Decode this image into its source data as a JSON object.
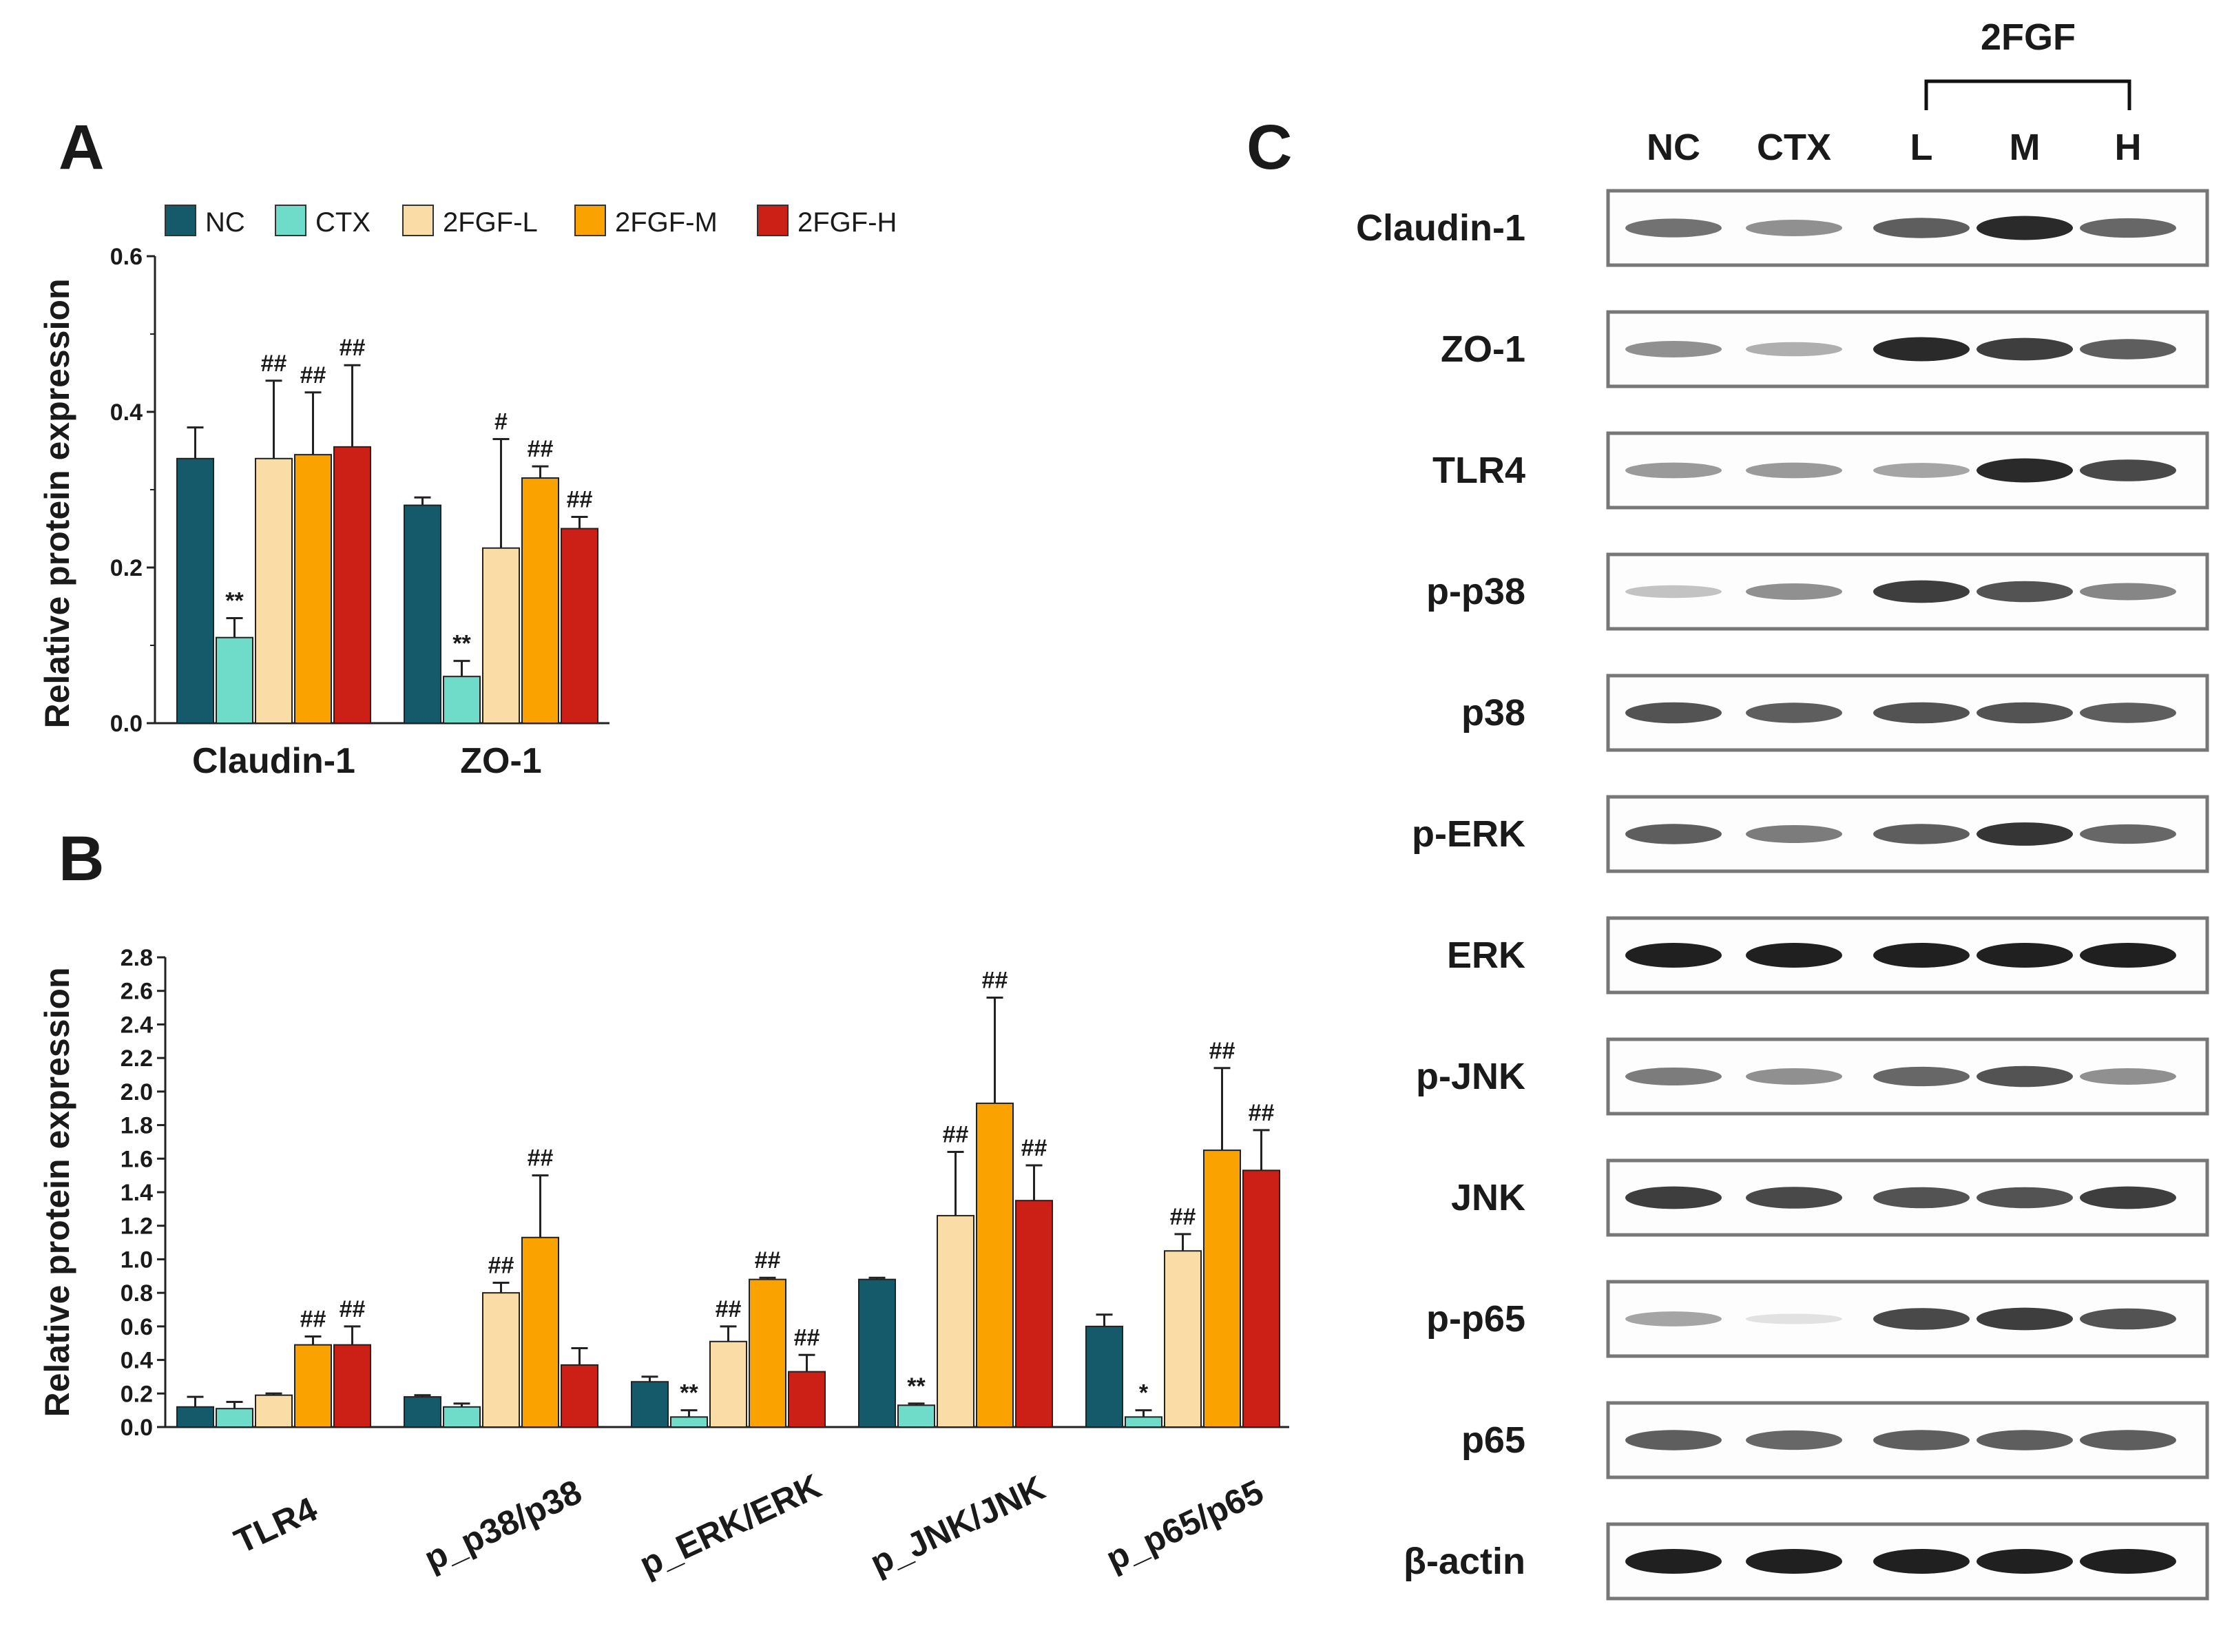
{
  "panels": {
    "A": "A",
    "B": "B",
    "C": "C"
  },
  "legend": [
    {
      "name": "NC",
      "color": "#155a6b"
    },
    {
      "name": "CTX",
      "color": "#6fdbc9"
    },
    {
      "name": "2FGF-L",
      "color": "#f9dca6"
    },
    {
      "name": "2FGF-M",
      "color": "#f9a200"
    },
    {
      "name": "2FGF-H",
      "color": "#cc1f16"
    }
  ],
  "chart_data": [
    {
      "type": "bar",
      "panel": "A",
      "ylabel": "Relative protein expression",
      "ylim": [
        0,
        0.6
      ],
      "yticks": [
        "0.0",
        "0.2",
        "0.4",
        "0.6"
      ],
      "categories": [
        "Claudin-1",
        "ZO-1"
      ],
      "series": [
        {
          "name": "NC",
          "values": [
            0.34,
            0.28
          ],
          "errors": [
            0.04,
            0.01
          ],
          "labels": [
            "",
            ""
          ]
        },
        {
          "name": "CTX",
          "values": [
            0.11,
            0.06
          ],
          "errors": [
            0.025,
            0.02
          ],
          "labels": [
            "**",
            "**"
          ]
        },
        {
          "name": "2FGF-L",
          "values": [
            0.34,
            0.225
          ],
          "errors": [
            0.1,
            0.14
          ],
          "labels": [
            "##",
            "#"
          ]
        },
        {
          "name": "2FGF-M",
          "values": [
            0.345,
            0.315
          ],
          "errors": [
            0.08,
            0.015
          ],
          "labels": [
            "##",
            "##"
          ]
        },
        {
          "name": "2FGF-H",
          "values": [
            0.355,
            0.25
          ],
          "errors": [
            0.105,
            0.015
          ],
          "labels": [
            "##",
            "##"
          ]
        }
      ]
    },
    {
      "type": "bar",
      "panel": "B",
      "ylabel": "Relative protein expression",
      "ylim": [
        0,
        2.8
      ],
      "yticks": [
        "0.0",
        "0.2",
        "0.4",
        "0.6",
        "0.8",
        "1.0",
        "1.2",
        "1.4",
        "1.6",
        "1.8",
        "2.0",
        "2.2",
        "2.4",
        "2.6",
        "2.8"
      ],
      "categories": [
        "TLR4",
        "p_p38/p38",
        "p_ERK/ERK",
        "p_JNK/JNK",
        "p_p65/p65"
      ],
      "series": [
        {
          "name": "NC",
          "values": [
            0.12,
            0.18,
            0.27,
            0.88,
            0.6
          ],
          "errors": [
            0.06,
            0.01,
            0.03,
            0.01,
            0.07
          ],
          "labels": [
            "",
            "",
            "",
            "",
            ""
          ]
        },
        {
          "name": "CTX",
          "values": [
            0.11,
            0.12,
            0.06,
            0.13,
            0.06
          ],
          "errors": [
            0.04,
            0.02,
            0.04,
            0.01,
            0.04
          ],
          "labels": [
            "",
            "",
            "**",
            "**",
            "*"
          ]
        },
        {
          "name": "2FGF-L",
          "values": [
            0.19,
            0.8,
            0.51,
            1.26,
            1.05
          ],
          "errors": [
            0.01,
            0.06,
            0.09,
            0.38,
            0.1
          ],
          "labels": [
            "",
            "##",
            "##",
            "##",
            "##"
          ]
        },
        {
          "name": "2FGF-M",
          "values": [
            0.49,
            1.13,
            0.88,
            1.93,
            1.65
          ],
          "errors": [
            0.05,
            0.37,
            0.01,
            0.63,
            0.49
          ],
          "labels": [
            "##",
            "##",
            "##",
            "##",
            "##"
          ]
        },
        {
          "name": "2FGF-H",
          "values": [
            0.49,
            0.37,
            0.33,
            1.35,
            1.53
          ],
          "errors": [
            0.11,
            0.1,
            0.1,
            0.21,
            0.24
          ],
          "labels": [
            "##",
            "",
            "##",
            "##",
            "##"
          ]
        }
      ]
    }
  ],
  "blot": {
    "group_label": "2FGF",
    "lanes": [
      "NC",
      "CTX",
      "L",
      "M",
      "H"
    ],
    "rows": [
      {
        "label": "Claudin-1",
        "intensity": [
          0.6,
          0.45,
          0.7,
          0.95,
          0.65
        ]
      },
      {
        "label": "ZO-1",
        "intensity": [
          0.45,
          0.3,
          0.95,
          0.85,
          0.7
        ]
      },
      {
        "label": "TLR4",
        "intensity": [
          0.4,
          0.4,
          0.35,
          0.95,
          0.8
        ]
      },
      {
        "label": "p-p38",
        "intensity": [
          0.2,
          0.45,
          0.85,
          0.75,
          0.5
        ]
      },
      {
        "label": "p38",
        "intensity": [
          0.75,
          0.7,
          0.75,
          0.75,
          0.7
        ]
      },
      {
        "label": "p-ERK",
        "intensity": [
          0.7,
          0.55,
          0.7,
          0.9,
          0.65
        ]
      },
      {
        "label": "ERK",
        "intensity": [
          1,
          1,
          1,
          1,
          1
        ]
      },
      {
        "label": "p-JNK",
        "intensity": [
          0.55,
          0.45,
          0.65,
          0.75,
          0.45
        ]
      },
      {
        "label": "JNK",
        "intensity": [
          0.85,
          0.8,
          0.75,
          0.75,
          0.85
        ]
      },
      {
        "label": "p-p65",
        "intensity": [
          0.35,
          0.05,
          0.8,
          0.85,
          0.75
        ]
      },
      {
        "label": "p65",
        "intensity": [
          0.7,
          0.65,
          0.7,
          0.7,
          0.7
        ]
      },
      {
        "label": "β-actin",
        "intensity": [
          1,
          1,
          1,
          1,
          1
        ]
      }
    ]
  }
}
